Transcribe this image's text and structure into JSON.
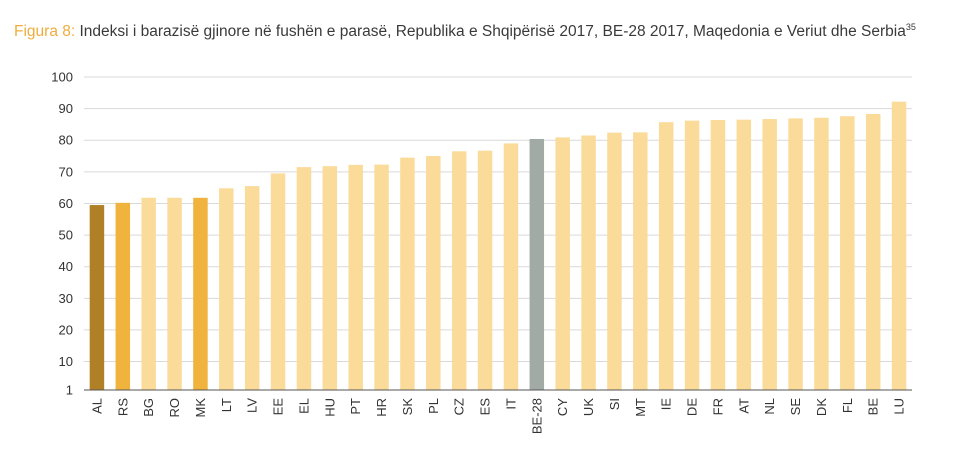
{
  "title": {
    "figure_label": "Figura 8:",
    "text": "Indeksi i barazisë gjinore në fushën e parasë, Republika e Shqipërisë 2017, BE-28 2017, Maqedonia e Veriut dhe Serbia",
    "footnote_mark": "35"
  },
  "colors": {
    "default": "#fbdb9a",
    "AL": "#b08026",
    "RS": "#f0b33e",
    "MK": "#f0b33e",
    "BE-28": "#a2aaa6",
    "grid": "#d9d9d9",
    "axis": "#555555"
  },
  "chart_data": {
    "type": "bar",
    "title": "Indeksi i barazisë gjinore në fushën e parasë, Republika e Shqipërisë 2017, BE-28 2017, Maqedonia e Veriut dhe Serbia",
    "xlabel": "",
    "ylabel": "",
    "ylim": [
      1,
      100
    ],
    "yticks": [
      1,
      10,
      20,
      30,
      40,
      50,
      60,
      70,
      80,
      90,
      100
    ],
    "grid": true,
    "categories": [
      "AL",
      "RS",
      "BG",
      "RO",
      "MK",
      "LT",
      "LV",
      "EE",
      "EL",
      "HU",
      "PT",
      "HR",
      "SK",
      "PL",
      "CZ",
      "ES",
      "IT",
      "BE-28",
      "CY",
      "UK",
      "SI",
      "MT",
      "IE",
      "DE",
      "FR",
      "AT",
      "NL",
      "SE",
      "DK",
      "FL",
      "BE",
      "LU"
    ],
    "values": [
      59.5,
      60.2,
      61.8,
      61.8,
      61.8,
      64.8,
      65.5,
      69.5,
      71.5,
      71.8,
      72.2,
      72.3,
      74.5,
      75,
      76.5,
      76.7,
      79,
      80.4,
      80.9,
      81.5,
      82.4,
      82.5,
      85.7,
      86.2,
      86.4,
      86.5,
      86.7,
      86.9,
      87.1,
      87.6,
      88.3,
      92.2
    ]
  }
}
